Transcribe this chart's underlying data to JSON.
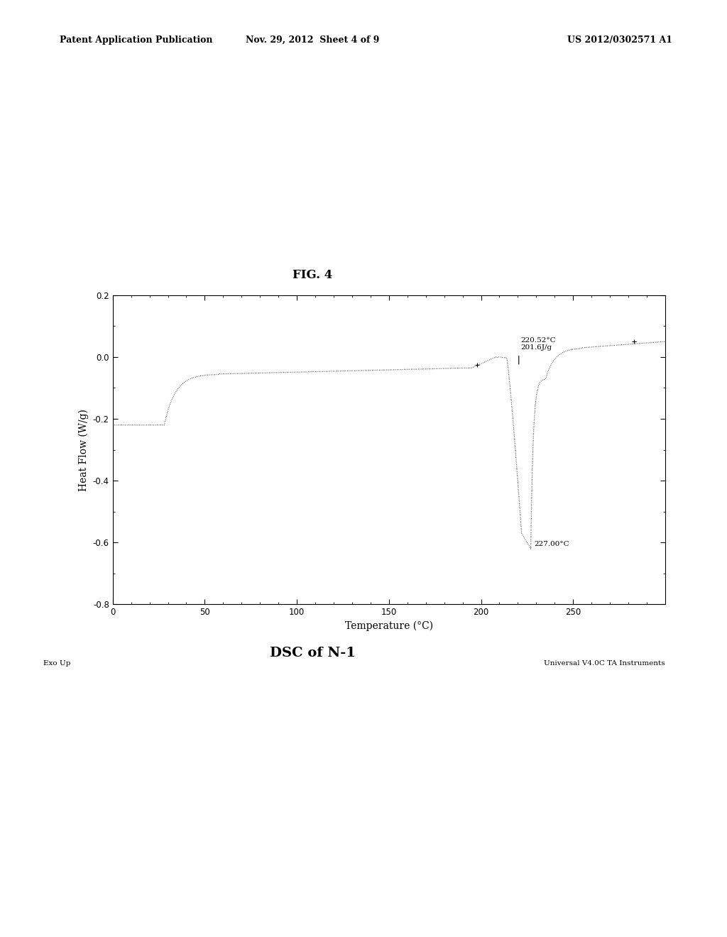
{
  "fig_title": "FIG. 4",
  "subtitle": "DSC of N-1",
  "xlabel": "Temperature (°C)",
  "ylabel": "Heat Flow (W/g)",
  "xlim": [
    0,
    300
  ],
  "ylim": [
    -0.8,
    0.2
  ],
  "xticks": [
    0,
    50,
    100,
    150,
    200,
    250
  ],
  "yticks": [
    -0.8,
    -0.6,
    -0.4,
    -0.2,
    0.0,
    0.2
  ],
  "annotation1_line1": "220.52°C",
  "annotation1_line2": "201.6J/g",
  "annotation2": "227.00°C",
  "exo_up_label": "Exo Up",
  "instruments_label": "Universal V4.0C TA Instruments",
  "header_left": "Patent Application Publication",
  "header_center": "Nov. 29, 2012  Sheet 4 of 9",
  "header_right": "US 2012/0302571 A1",
  "background_color": "#ffffff",
  "curve_color": "#000000"
}
